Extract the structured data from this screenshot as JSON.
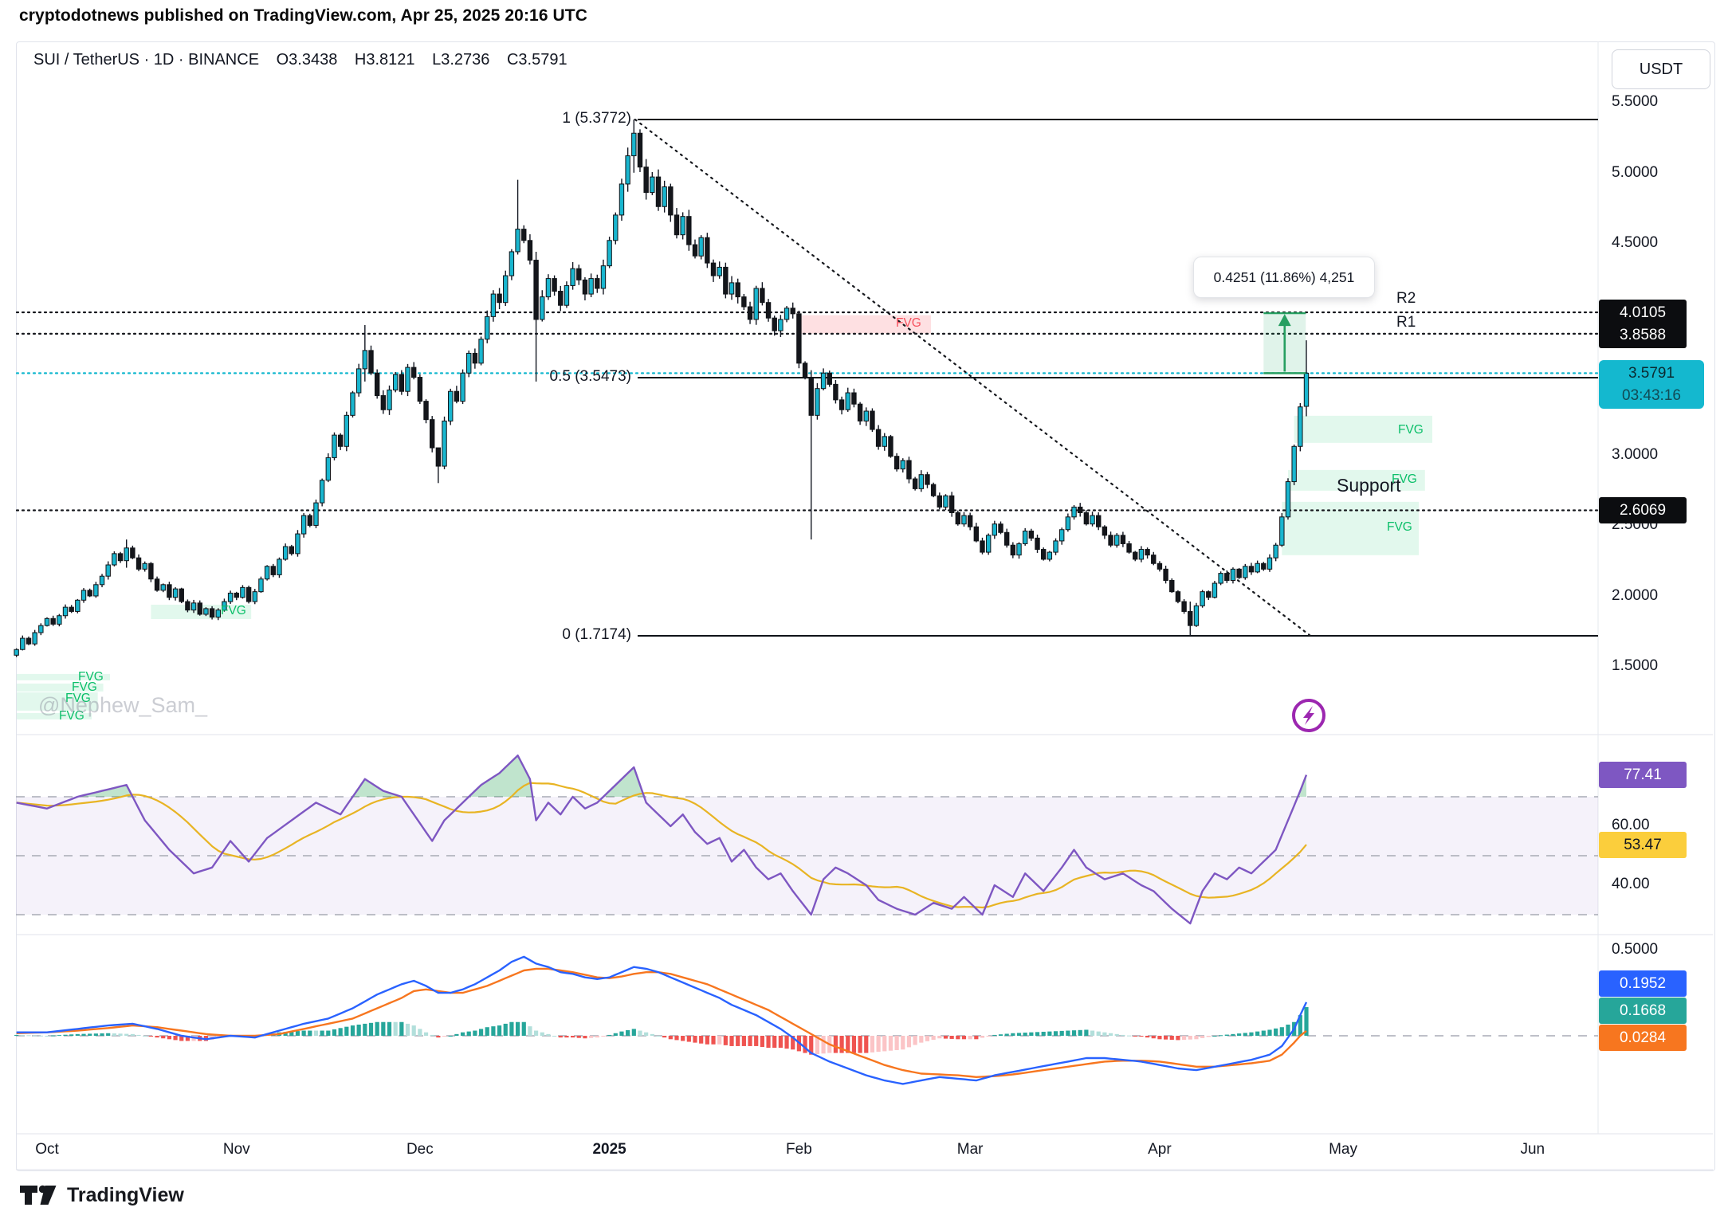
{
  "page": {
    "header_line": "cryptodotnews published on TradingView.com, Apr 25, 2025 20:16 UTC",
    "watermark": "@Nephew_Sam_",
    "logo_text": "TradingView"
  },
  "toolbar": {
    "symbol_line": "SUI / TetherUS · 1D · BINANCE",
    "ohlc": {
      "o": "O3.3438",
      "h": "H3.8121",
      "l": "L3.2736",
      "c": "C3.5791"
    },
    "currency_button": "USDT"
  },
  "price_axis": {
    "ticks": [
      {
        "label": "5.5000",
        "price": 5.5
      },
      {
        "label": "5.0000",
        "price": 5.0
      },
      {
        "label": "4.5000",
        "price": 4.5
      },
      {
        "label": "3.0000",
        "price": 3.0
      },
      {
        "label": "2.5000",
        "price": 2.5
      },
      {
        "label": "2.0000",
        "price": 2.0
      },
      {
        "label": "1.5000",
        "price": 1.5
      }
    ],
    "badges": {
      "r2": {
        "label": "4.0105",
        "price": 4.0105
      },
      "r1": {
        "label": "3.8588",
        "price": 3.8588
      },
      "support": {
        "label": "2.6069",
        "price": 2.6069
      },
      "last": {
        "label": "3.5791",
        "countdown": "03:43:16",
        "price": 3.5791
      }
    }
  },
  "time_axis": {
    "months": [
      {
        "label": "Oct",
        "day": 0,
        "bold": false
      },
      {
        "label": "Nov",
        "day": 31,
        "bold": false
      },
      {
        "label": "Dec",
        "day": 61,
        "bold": false
      },
      {
        "label": "2025",
        "day": 92,
        "bold": true
      },
      {
        "label": "Feb",
        "day": 123,
        "bold": false
      },
      {
        "label": "Mar",
        "day": 151,
        "bold": false
      },
      {
        "label": "Apr",
        "day": 182,
        "bold": false
      },
      {
        "label": "May",
        "day": 212,
        "bold": false
      },
      {
        "label": "Jun",
        "day": 243,
        "bold": false
      }
    ]
  },
  "annotations": {
    "fib_levels": [
      {
        "label": "1 (5.3772)",
        "price": 5.3772
      },
      {
        "label": "0.5 (3.5473)",
        "price": 3.5473
      },
      {
        "label": "0 (1.7174)",
        "price": 1.7174
      }
    ],
    "pivots": {
      "r2": "R2",
      "r1": "R1",
      "support": "Support"
    },
    "tooltip_text": "0.4251 (11.86%) 4,251",
    "measure": {
      "from_day": 199,
      "to_day": 205.9,
      "from_price": 3.5791,
      "to_price": 4.0042
    },
    "trendline": {
      "from_day": 96.2,
      "from_price": 5.3772,
      "to_day": 207.2,
      "to_price": 1.7
    },
    "dotted_levels": [
      4.0105,
      3.8588,
      2.6069
    ],
    "last_price_line": 3.5791,
    "fvg": {
      "zones": [
        {
          "label": "FVG",
          "d0": 17,
          "d1": 33.4,
          "p0": 1.836,
          "p1": 1.938,
          "kind": "green"
        },
        {
          "label": "FVG",
          "d0": -5,
          "d1": 10.3,
          "p0": 1.402,
          "p1": 1.447,
          "kind": "green"
        },
        {
          "label": "FVG",
          "d0": -5,
          "d1": 9.2,
          "p0": 1.323,
          "p1": 1.379,
          "kind": "green"
        },
        {
          "label": "FVG",
          "d0": -5,
          "d1": 8.3,
          "p0": 1.187,
          "p1": 1.317,
          "kind": "green"
        },
        {
          "label": "FVG",
          "d0": -5,
          "d1": 7.3,
          "p0": 1.125,
          "p1": 1.17,
          "kind": "green"
        },
        {
          "label": "FVG",
          "d0": 204,
          "d1": 226.6,
          "p0": 3.085,
          "p1": 3.277,
          "kind": "green"
        },
        {
          "label": "FVG",
          "d0": 203,
          "d1": 225.4,
          "p0": 2.746,
          "p1": 2.893,
          "kind": "green"
        },
        {
          "label": "FVG",
          "d0": 202,
          "d1": 224.4,
          "p0": 2.289,
          "p1": 2.667,
          "kind": "green"
        },
        {
          "label": "FVG",
          "d0": 123,
          "d1": 144.6,
          "p0": 3.86,
          "p1": 3.99,
          "kind": "red"
        }
      ]
    }
  },
  "indicators": {
    "rsi": {
      "tick_60": "60.00",
      "tick_40": "40.00",
      "last_label": "77.41",
      "ma_label": "53.47",
      "last": 77.41,
      "ma_last": 53.47
    },
    "macd": {
      "tick_top": "0.5000",
      "macd_label": "0.1952",
      "hist_label": "0.1668",
      "signal_label": "0.0284",
      "last": {
        "macd": 0.1952,
        "signal": 0.0284,
        "hist": 0.1668
      }
    }
  },
  "colors": {
    "up_candle": "#19b6cf",
    "down_candle": "#14161b",
    "wick": "#131722",
    "rsi_line": "#7e57c2",
    "rsi_ma": "#e8b423",
    "rsi_band": "rgba(126,87,194,0.08)",
    "macd_line": "#2962ff",
    "signal_line": "#f7761f",
    "hist_up": "#26a69a",
    "hist_up_weak": "#b2dfdb",
    "hist_down": "#ef5350",
    "hist_down_weak": "#fbc4c6",
    "fvg_green_fill": "rgba(16,194,109,0.12)",
    "fvg_red_fill": "rgba(247,82,95,0.18)",
    "measure_green": "#279f61",
    "last_line": "#14b8cf",
    "badge_purple": "#7e57c2",
    "badge_yellow": "#fbce3c",
    "badge_blue": "#2962ff",
    "badge_teal": "#26a69a",
    "badge_orange": "#f7761f",
    "badge_black": "#0c0d10",
    "badge_cyan": "#14b8cf"
  },
  "chart_data": {
    "type": "candlestick+indicators",
    "title": "SUI / TetherUS 1D BINANCE",
    "x_axis": "Oct 2024 – Jun 2025 (daily)",
    "y_axis_range": [
      1.5,
      5.5
    ],
    "price": {
      "closes_start_day": -5,
      "closes": [
        1.62,
        1.7,
        1.66,
        1.74,
        1.79,
        1.84,
        1.8,
        1.86,
        1.92,
        1.89,
        1.97,
        2.04,
        2.0,
        2.08,
        2.14,
        2.22,
        2.3,
        2.25,
        2.34,
        2.27,
        2.19,
        2.23,
        2.12,
        2.04,
        2.08,
        1.99,
        2.05,
        1.96,
        1.9,
        1.95,
        1.87,
        1.91,
        1.85,
        1.9,
        1.96,
        2.02,
        1.99,
        2.06,
        1.96,
        2.03,
        2.12,
        2.21,
        2.15,
        2.26,
        2.35,
        2.3,
        2.44,
        2.57,
        2.5,
        2.66,
        2.82,
        2.98,
        3.14,
        3.06,
        3.28,
        3.44,
        3.61,
        3.74,
        3.58,
        3.42,
        3.32,
        3.46,
        3.57,
        3.45,
        3.62,
        3.55,
        3.38,
        3.25,
        3.05,
        2.92,
        3.24,
        3.45,
        3.38,
        3.58,
        3.72,
        3.65,
        3.82,
        3.98,
        4.14,
        4.08,
        4.27,
        4.44,
        4.6,
        4.52,
        4.38,
        3.96,
        4.12,
        4.25,
        4.16,
        4.06,
        4.2,
        4.32,
        4.24,
        4.14,
        4.25,
        4.18,
        4.34,
        4.52,
        4.7,
        4.92,
        5.12,
        5.28,
        5.04,
        4.86,
        4.97,
        4.76,
        4.9,
        4.7,
        4.56,
        4.69,
        4.49,
        4.41,
        4.54,
        4.36,
        4.27,
        4.33,
        4.14,
        4.22,
        4.12,
        4.05,
        3.96,
        4.18,
        4.08,
        3.97,
        3.88,
        3.96,
        4.04,
        4.0,
        3.65,
        3.55,
        3.28,
        3.47,
        3.58,
        3.5,
        3.39,
        3.32,
        3.44,
        3.36,
        3.24,
        3.31,
        3.18,
        3.06,
        3.13,
        2.99,
        2.9,
        2.96,
        2.83,
        2.76,
        2.86,
        2.79,
        2.71,
        2.63,
        2.71,
        2.59,
        2.51,
        2.57,
        2.49,
        2.39,
        2.31,
        2.43,
        2.51,
        2.45,
        2.36,
        2.29,
        2.37,
        2.46,
        2.41,
        2.33,
        2.26,
        2.31,
        2.39,
        2.47,
        2.56,
        2.63,
        2.59,
        2.51,
        2.57,
        2.49,
        2.43,
        2.36,
        2.43,
        2.37,
        2.31,
        2.26,
        2.33,
        2.29,
        2.23,
        2.19,
        2.11,
        2.03,
        1.96,
        1.89,
        1.79,
        1.93,
        2.03,
        1.99,
        2.09,
        2.16,
        2.11,
        2.19,
        2.13,
        2.21,
        2.17,
        2.23,
        2.19,
        2.27,
        2.36,
        2.56,
        2.81,
        3.06,
        3.34,
        3.58
      ],
      "special_wicks": {
        "13": [
          2.4,
          2.2
        ],
        "52": [
          3.92,
          3.52
        ],
        "64": [
          3.02,
          2.8
        ],
        "77": [
          4.95,
          4.42
        ],
        "80": [
          4.44,
          3.52
        ],
        "96": [
          5.3772,
          5.0
        ],
        "125": [
          3.6,
          2.4
        ],
        "187": [
          1.96,
          1.7174
        ]
      },
      "last_candle": {
        "day": 206,
        "o": 3.3438,
        "h": 3.8121,
        "l": 3.2736,
        "c": 3.5791
      }
    },
    "rsi": {
      "points": [
        [
          -5,
          68
        ],
        [
          0,
          66
        ],
        [
          5,
          70
        ],
        [
          9,
          72
        ],
        [
          13,
          74
        ],
        [
          16,
          62
        ],
        [
          20,
          52
        ],
        [
          24,
          44
        ],
        [
          27,
          46
        ],
        [
          30,
          55
        ],
        [
          33,
          48
        ],
        [
          36,
          56
        ],
        [
          40,
          62
        ],
        [
          44,
          68
        ],
        [
          48,
          64
        ],
        [
          52,
          76
        ],
        [
          55,
          72
        ],
        [
          58,
          70
        ],
        [
          60,
          64
        ],
        [
          63,
          55
        ],
        [
          65,
          62
        ],
        [
          68,
          68
        ],
        [
          71,
          74
        ],
        [
          74,
          78
        ],
        [
          77,
          84
        ],
        [
          79,
          76
        ],
        [
          80,
          62
        ],
        [
          82,
          68
        ],
        [
          84,
          64
        ],
        [
          86,
          70
        ],
        [
          88,
          66
        ],
        [
          90,
          68
        ],
        [
          93,
          74
        ],
        [
          96,
          80
        ],
        [
          98,
          68
        ],
        [
          100,
          64
        ],
        [
          102,
          60
        ],
        [
          104,
          64
        ],
        [
          106,
          58
        ],
        [
          108,
          54
        ],
        [
          110,
          56
        ],
        [
          112,
          48
        ],
        [
          114,
          52
        ],
        [
          116,
          46
        ],
        [
          118,
          42
        ],
        [
          120,
          44
        ],
        [
          122,
          38
        ],
        [
          125,
          30
        ],
        [
          127,
          42
        ],
        [
          129,
          46
        ],
        [
          131,
          44
        ],
        [
          134,
          40
        ],
        [
          136,
          35
        ],
        [
          139,
          32
        ],
        [
          142,
          30
        ],
        [
          145,
          34
        ],
        [
          148,
          32
        ],
        [
          150,
          36
        ],
        [
          153,
          30
        ],
        [
          155,
          40
        ],
        [
          158,
          36
        ],
        [
          160,
          44
        ],
        [
          163,
          38
        ],
        [
          166,
          46
        ],
        [
          168,
          52
        ],
        [
          170,
          46
        ],
        [
          173,
          42
        ],
        [
          176,
          44
        ],
        [
          179,
          40
        ],
        [
          181,
          38
        ],
        [
          184,
          32
        ],
        [
          187,
          27
        ],
        [
          189,
          38
        ],
        [
          191,
          44
        ],
        [
          193,
          42
        ],
        [
          195,
          46
        ],
        [
          197,
          44
        ],
        [
          199,
          48
        ],
        [
          201,
          52
        ],
        [
          203,
          62
        ],
        [
          205,
          72
        ],
        [
          206,
          77.41
        ]
      ],
      "bands": [
        70,
        50,
        30
      ]
    },
    "macd": {
      "points": [
        [
          -5,
          0.02,
          0.015
        ],
        [
          0,
          0.02,
          0.02
        ],
        [
          5,
          0.04,
          0.03
        ],
        [
          10,
          0.06,
          0.045
        ],
        [
          14,
          0.07,
          0.06
        ],
        [
          18,
          0.04,
          0.05
        ],
        [
          22,
          0.0,
          0.03
        ],
        [
          26,
          -0.02,
          0.01
        ],
        [
          30,
          0.0,
          0.0
        ],
        [
          34,
          -0.01,
          0.0
        ],
        [
          38,
          0.03,
          0.01
        ],
        [
          42,
          0.07,
          0.04
        ],
        [
          46,
          0.1,
          0.07
        ],
        [
          50,
          0.16,
          0.1
        ],
        [
          54,
          0.24,
          0.16
        ],
        [
          58,
          0.3,
          0.22
        ],
        [
          60,
          0.32,
          0.26
        ],
        [
          62,
          0.29,
          0.27
        ],
        [
          64,
          0.25,
          0.26
        ],
        [
          66,
          0.25,
          0.25
        ],
        [
          68,
          0.27,
          0.25
        ],
        [
          70,
          0.3,
          0.27
        ],
        [
          72,
          0.34,
          0.29
        ],
        [
          74,
          0.38,
          0.32
        ],
        [
          76,
          0.43,
          0.35
        ],
        [
          78,
          0.46,
          0.38
        ],
        [
          80,
          0.42,
          0.39
        ],
        [
          82,
          0.4,
          0.39
        ],
        [
          84,
          0.37,
          0.38
        ],
        [
          86,
          0.36,
          0.37
        ],
        [
          88,
          0.34,
          0.355
        ],
        [
          90,
          0.33,
          0.34
        ],
        [
          92,
          0.34,
          0.335
        ],
        [
          94,
          0.37,
          0.345
        ],
        [
          96,
          0.4,
          0.36
        ],
        [
          98,
          0.39,
          0.37
        ],
        [
          100,
          0.37,
          0.37
        ],
        [
          102,
          0.34,
          0.36
        ],
        [
          104,
          0.31,
          0.34
        ],
        [
          106,
          0.28,
          0.32
        ],
        [
          108,
          0.25,
          0.3
        ],
        [
          110,
          0.22,
          0.27
        ],
        [
          112,
          0.18,
          0.24
        ],
        [
          114,
          0.15,
          0.21
        ],
        [
          116,
          0.12,
          0.18
        ],
        [
          118,
          0.08,
          0.15
        ],
        [
          120,
          0.04,
          0.11
        ],
        [
          122,
          -0.01,
          0.07
        ],
        [
          125,
          -0.1,
          0.01
        ],
        [
          128,
          -0.15,
          -0.05
        ],
        [
          131,
          -0.19,
          -0.09
        ],
        [
          134,
          -0.23,
          -0.13
        ],
        [
          137,
          -0.26,
          -0.17
        ],
        [
          140,
          -0.28,
          -0.2
        ],
        [
          143,
          -0.26,
          -0.22
        ],
        [
          146,
          -0.24,
          -0.225
        ],
        [
          149,
          -0.25,
          -0.23
        ],
        [
          152,
          -0.26,
          -0.24
        ],
        [
          155,
          -0.23,
          -0.235
        ],
        [
          158,
          -0.21,
          -0.225
        ],
        [
          161,
          -0.19,
          -0.21
        ],
        [
          164,
          -0.17,
          -0.195
        ],
        [
          167,
          -0.15,
          -0.18
        ],
        [
          170,
          -0.13,
          -0.165
        ],
        [
          173,
          -0.13,
          -0.15
        ],
        [
          176,
          -0.14,
          -0.145
        ],
        [
          179,
          -0.15,
          -0.145
        ],
        [
          182,
          -0.17,
          -0.15
        ],
        [
          185,
          -0.19,
          -0.165
        ],
        [
          188,
          -0.2,
          -0.18
        ],
        [
          191,
          -0.18,
          -0.18
        ],
        [
          194,
          -0.16,
          -0.17
        ],
        [
          197,
          -0.14,
          -0.16
        ],
        [
          200,
          -0.11,
          -0.145
        ],
        [
          202,
          -0.06,
          -0.11
        ],
        [
          204,
          0.04,
          -0.04
        ],
        [
          205,
          0.12,
          0.0
        ],
        [
          206,
          0.1952,
          0.0284
        ]
      ],
      "tick_top_value": 0.5
    }
  }
}
